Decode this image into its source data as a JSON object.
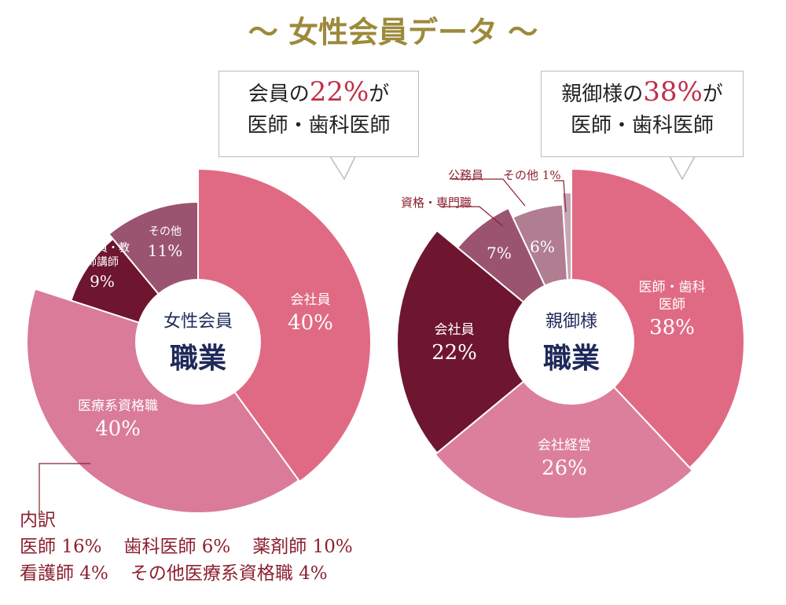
{
  "title": "〜 女性会員データ 〜",
  "callouts": [
    {
      "pre": "会員の",
      "highlight": "22%",
      "post": "が",
      "line2": "医師・歯科医師"
    },
    {
      "pre": "親御様の",
      "highlight": "38%",
      "post": "が",
      "line2": "医師・歯科医師"
    }
  ],
  "chart_data": [
    {
      "type": "pie",
      "center_label": [
        "女性会員",
        "職業"
      ],
      "categories": [
        "会社員",
        "医療系資格職",
        "公務員・教師講師",
        "その他"
      ],
      "values": [
        40,
        40,
        9,
        11
      ],
      "value_labels": [
        "40%",
        "40%",
        "9%",
        "11%"
      ],
      "colors": [
        "#e06a84",
        "#d97b99",
        "#6e1530",
        "#9a5470"
      ],
      "breakdown": {
        "heading": "内訳",
        "items": [
          "医師 16%",
          "歯科医師 6%",
          "薬剤師 10%",
          "看護師 4%",
          "その他医療系資格職 4%"
        ]
      }
    },
    {
      "type": "pie",
      "center_label": [
        "親御様",
        "職業"
      ],
      "categories": [
        "医師・歯科医師",
        "会社経営",
        "会社員",
        "資格・専門職",
        "公務員",
        "その他"
      ],
      "values": [
        38,
        26,
        22,
        7,
        6,
        1
      ],
      "value_labels": [
        "38%",
        "26%",
        "22%",
        "7%",
        "6%",
        "1%"
      ],
      "colors": [
        "#e06a84",
        "#dc7f9c",
        "#6e1530",
        "#9a5470",
        "#b07d91",
        "#c8a6b5"
      ]
    }
  ]
}
